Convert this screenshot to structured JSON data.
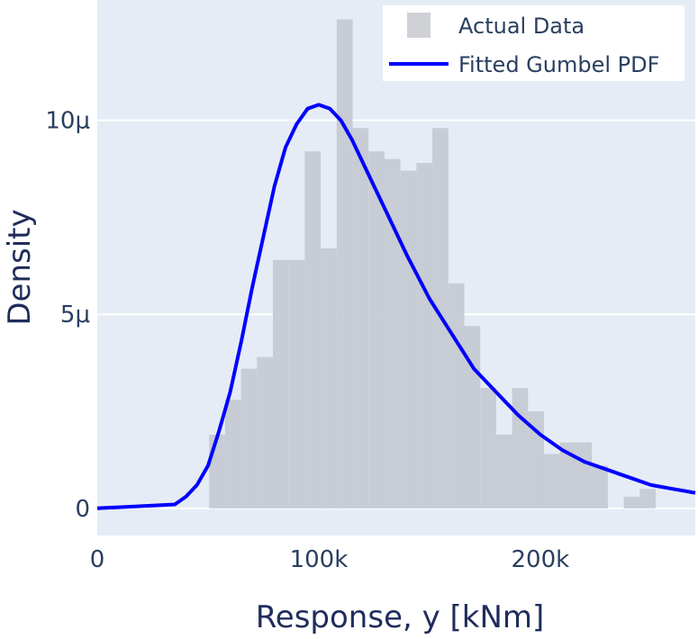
{
  "chart_data": {
    "type": "bar",
    "title": "",
    "xlabel": "Response, y  [kNm]",
    "ylabel": "Density",
    "xlim": [
      0,
      270000
    ],
    "ylim": [
      -7e-07,
      1.31e-05
    ],
    "x_ticks": [
      0,
      100000,
      200000
    ],
    "x_tick_labels": [
      "0",
      "100k",
      "200k"
    ],
    "y_ticks": [
      0,
      5e-06,
      1e-05
    ],
    "y_tick_labels": [
      "0",
      "5μ",
      "10μ"
    ],
    "grid": true,
    "legend_position": "top-right",
    "colors": {
      "plot_background": "#e5ecf6",
      "bars": "#c8ccd4",
      "legend_marker": "#cfd1d6",
      "line": "#0000ff",
      "grid": "#ffffff"
    },
    "series": [
      {
        "name": "Actual Data",
        "type": "histogram",
        "bin_width": 7200,
        "bin_starts": [
          50500,
          57700,
          64900,
          72100,
          79300,
          86500,
          93700,
          100900,
          108100,
          115300,
          122500,
          129700,
          136900,
          144100,
          151300,
          158500,
          165700,
          172900,
          180100,
          187300,
          194500,
          201700,
          208900,
          216100,
          223300,
          230500,
          237700,
          244900
        ],
        "values": [
          1.9e-06,
          2.8e-06,
          3.6e-06,
          3.9e-06,
          6.4e-06,
          6.4e-06,
          9.2e-06,
          6.7e-06,
          1.26e-05,
          9.8e-06,
          9.2e-06,
          9e-06,
          8.7e-06,
          8.9e-06,
          9.8e-06,
          5.8e-06,
          4.7e-06,
          3.1e-06,
          1.9e-06,
          3.1e-06,
          2.5e-06,
          1.4e-06,
          1.7e-06,
          1.7e-06,
          1.1e-06,
          0,
          3e-07,
          5e-07
        ]
      },
      {
        "name": "Fitted Gumbel PDF",
        "type": "line",
        "x": [
          0,
          35000,
          40000,
          45000,
          50000,
          55000,
          60000,
          65000,
          70000,
          75000,
          80000,
          85000,
          90000,
          95000,
          100000,
          105000,
          110000,
          115000,
          120000,
          125000,
          130000,
          140000,
          150000,
          160000,
          170000,
          180000,
          190000,
          200000,
          210000,
          220000,
          230000,
          240000,
          250000,
          260000,
          270000
        ],
        "y": [
          0,
          1e-07,
          3e-07,
          6e-07,
          1.1e-06,
          2e-06,
          3e-06,
          4.3e-06,
          5.7e-06,
          7e-06,
          8.3e-06,
          9.3e-06,
          9.9e-06,
          1.03e-05,
          1.04e-05,
          1.03e-05,
          1e-05,
          9.5e-06,
          8.9e-06,
          8.3e-06,
          7.7e-06,
          6.5e-06,
          5.4e-06,
          4.5e-06,
          3.6e-06,
          3e-06,
          2.4e-06,
          1.9e-06,
          1.5e-06,
          1.2e-06,
          1e-06,
          8e-07,
          6e-07,
          5e-07,
          4e-07
        ]
      }
    ]
  }
}
